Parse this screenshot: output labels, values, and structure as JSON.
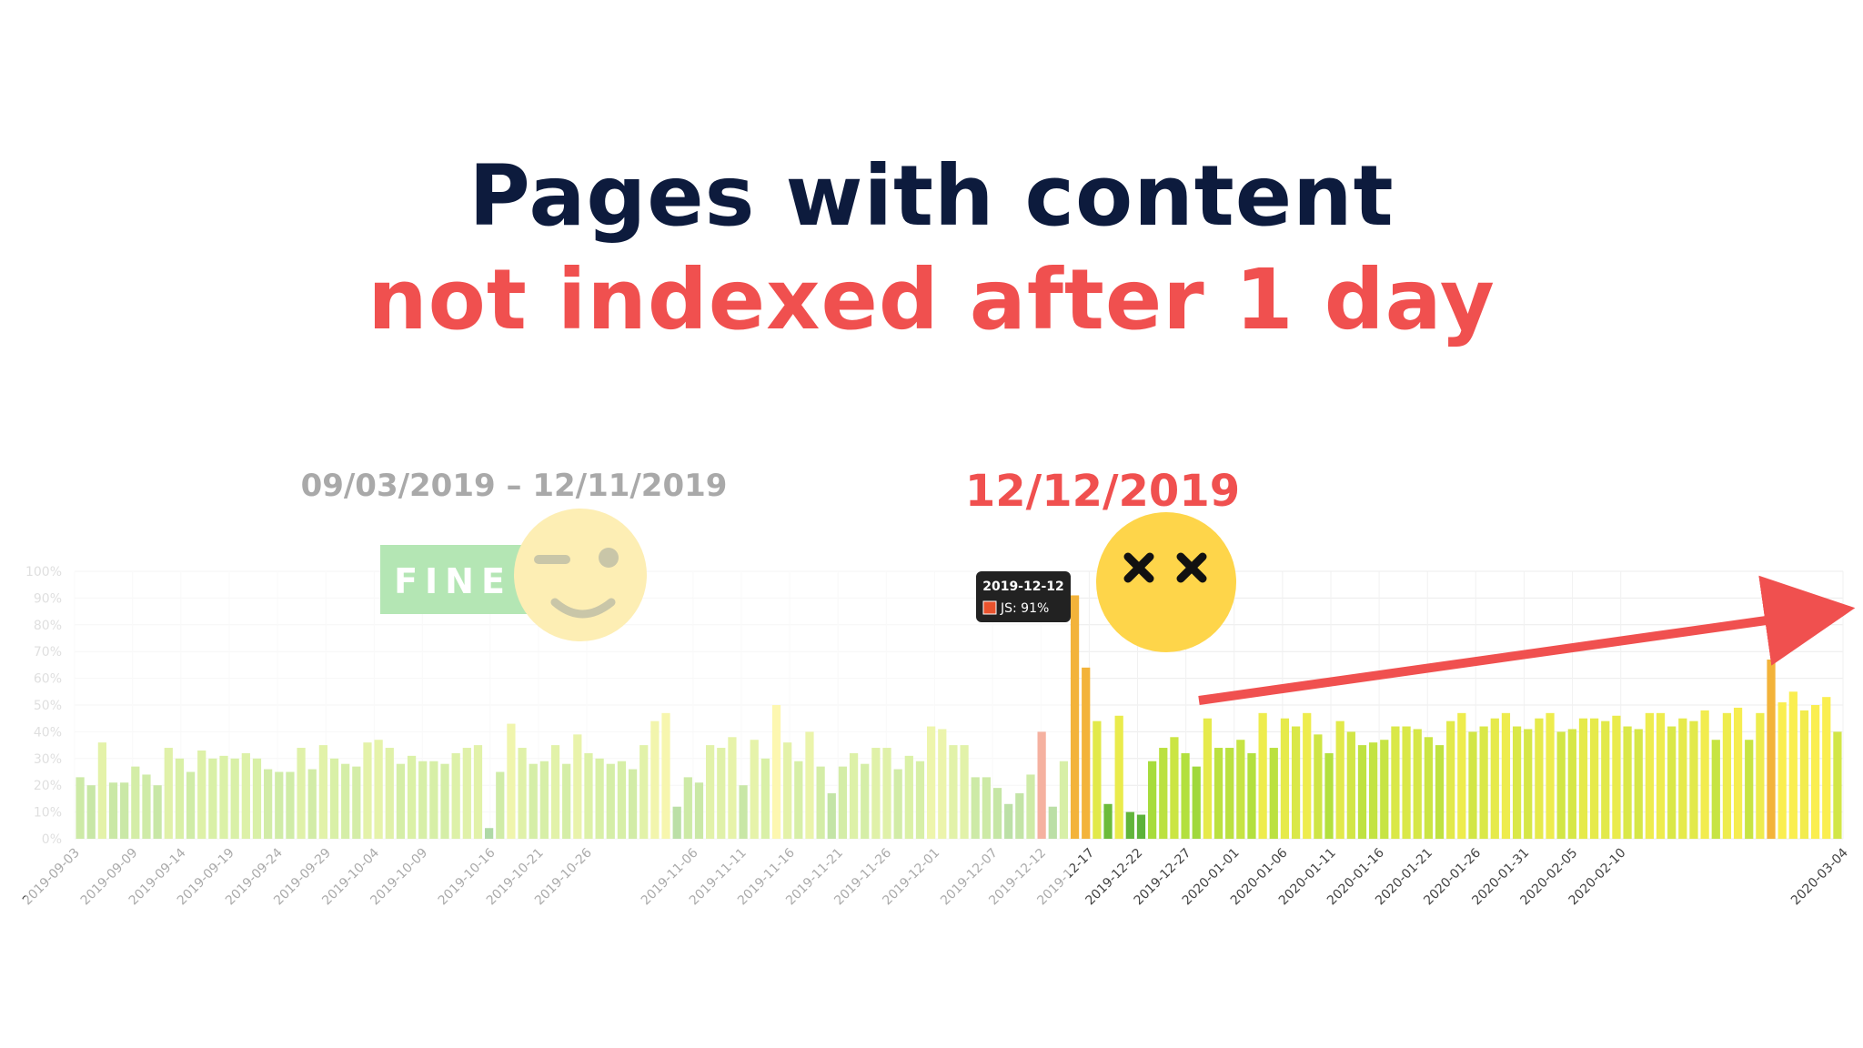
{
  "title": {
    "line1": "Pages with content",
    "line2": "not indexed after 1 day"
  },
  "colors": {
    "title_dark": "#0d1b3d",
    "accent_red": "#f0504f",
    "fine_green": "#b4e6b4",
    "smiley_yellow": "#fed54a"
  },
  "annotations": {
    "period_before": "09/03/2019 – 12/11/2019",
    "period_after": "12/12/2019",
    "fine_badge": "FINE",
    "tooltip_date": "2019-12-12",
    "tooltip_value": "JS: 91%"
  },
  "icons": [
    "winking-smiley-icon",
    "dizzy-face-icon",
    "trend-arrow-icon"
  ],
  "chart_data": {
    "type": "bar",
    "x_start": "2019-09-03",
    "x_end": "2020-03-04",
    "ylim": [
      0,
      100
    ],
    "y_ticks": [
      "0%",
      "10%",
      "20%",
      "30%",
      "40%",
      "50%",
      "60%",
      "70%",
      "80%",
      "90%",
      "100%"
    ],
    "x_tick_labels": [
      "2019-09-03",
      "2019-09-09",
      "2019-09-14",
      "2019-09-19",
      "2019-09-24",
      "2019-09-29",
      "2019-10-04",
      "2019-10-09",
      "2019-10-16",
      "2019-10-21",
      "2019-10-26",
      "2019-11-06",
      "2019-11-11",
      "2019-11-16",
      "2019-11-21",
      "2019-11-26",
      "2019-12-01",
      "2019-12-07",
      "2019-12-12",
      "2019-12-17",
      "2019-12-22",
      "2019-12-27",
      "2020-01-01",
      "2020-01-06",
      "2020-01-11",
      "2020-01-16",
      "2020-01-21",
      "2020-01-26",
      "2020-01-31",
      "2020-02-05",
      "2020-02-10",
      "2020-03-04"
    ],
    "highlight_date": "2019-12-12",
    "grid": true,
    "values": [
      23,
      20,
      36,
      21,
      21,
      27,
      24,
      20,
      34,
      30,
      25,
      33,
      30,
      31,
      30,
      32,
      30,
      26,
      25,
      25,
      34,
      26,
      35,
      30,
      28,
      27,
      36,
      37,
      34,
      28,
      31,
      29,
      29,
      28,
      32,
      34,
      35,
      4,
      25,
      43,
      34,
      28,
      29,
      35,
      28,
      39,
      32,
      30,
      28,
      29,
      26,
      35,
      44,
      47,
      12,
      23,
      21,
      35,
      34,
      38,
      20,
      37,
      30,
      50,
      36,
      29,
      40,
      27,
      17,
      27,
      32,
      28,
      34,
      34,
      26,
      31,
      29,
      42,
      41,
      35,
      35,
      23,
      23,
      19,
      13,
      17,
      24,
      40,
      12,
      29,
      91,
      64,
      44,
      13,
      46,
      10,
      9,
      29,
      34,
      38,
      32,
      27,
      45,
      34,
      34,
      37,
      32,
      47,
      34,
      45,
      42,
      47,
      39,
      32,
      44,
      40,
      35,
      36,
      37,
      42,
      42,
      41,
      38,
      35,
      44,
      47,
      40,
      42,
      45,
      47,
      42,
      41,
      45,
      47,
      40,
      41,
      45,
      45,
      44,
      46,
      42,
      41,
      47,
      47,
      42,
      45,
      44,
      48,
      37,
      47,
      49,
      37,
      47,
      67,
      51,
      55,
      48,
      50,
      53,
      40
    ]
  }
}
